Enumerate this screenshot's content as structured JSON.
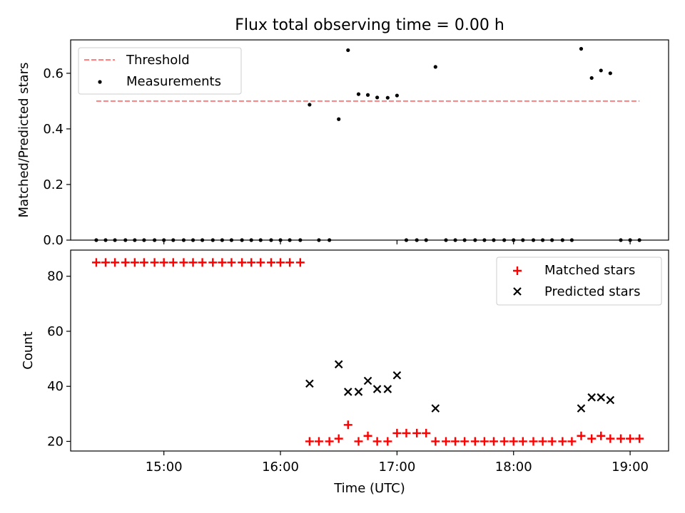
{
  "chart_data": {
    "title": "Flux total observing time = 0.00 h",
    "xlabel": "Time (UTC)",
    "x_unit": "hours (UTC)",
    "xlim": [
      14.2,
      19.33
    ],
    "x_ticks": [
      {
        "value": 15,
        "label": "15:00"
      },
      {
        "value": 16,
        "label": "16:00"
      },
      {
        "value": 17,
        "label": "17:00"
      },
      {
        "value": 18,
        "label": "18:00"
      },
      {
        "value": 19,
        "label": "19:00"
      }
    ],
    "top": {
      "type": "scatter",
      "ylabel": "Matched/Predicted stars",
      "ylim": [
        0,
        0.72
      ],
      "y_ticks": [
        "0.0",
        "0.2",
        "0.4",
        "0.6"
      ],
      "y_tick_values": [
        0,
        0.2,
        0.4,
        0.6
      ],
      "legend": [
        "Threshold",
        "Measurements"
      ],
      "legend_position": "upper-left",
      "threshold": {
        "name": "Threshold",
        "y": 0.5,
        "x": [
          14.42,
          19.08
        ],
        "color": "#ff7f7f"
      },
      "measurements": {
        "name": "Measurements",
        "color": "#000000",
        "points": [
          [
            14.42,
            0
          ],
          [
            14.5,
            0
          ],
          [
            14.58,
            0
          ],
          [
            14.67,
            0
          ],
          [
            14.75,
            0
          ],
          [
            14.83,
            0
          ],
          [
            14.92,
            0
          ],
          [
            15.0,
            0
          ],
          [
            15.08,
            0
          ],
          [
            15.17,
            0
          ],
          [
            15.25,
            0
          ],
          [
            15.33,
            0
          ],
          [
            15.42,
            0
          ],
          [
            15.5,
            0
          ],
          [
            15.58,
            0
          ],
          [
            15.67,
            0
          ],
          [
            15.75,
            0
          ],
          [
            15.83,
            0
          ],
          [
            15.92,
            0
          ],
          [
            16.0,
            0
          ],
          [
            16.08,
            0
          ],
          [
            16.17,
            0
          ],
          [
            16.25,
            0.487
          ],
          [
            16.33,
            0
          ],
          [
            16.42,
            0
          ],
          [
            16.5,
            0.435
          ],
          [
            16.58,
            0.683
          ],
          [
            16.67,
            0.525
          ],
          [
            16.75,
            0.522
          ],
          [
            16.83,
            0.513
          ],
          [
            16.92,
            0.512
          ],
          [
            17.0,
            0.52
          ],
          [
            17.08,
            0
          ],
          [
            17.17,
            0
          ],
          [
            17.25,
            0
          ],
          [
            17.33,
            0.623
          ],
          [
            17.42,
            0
          ],
          [
            17.5,
            0
          ],
          [
            17.58,
            0
          ],
          [
            17.67,
            0
          ],
          [
            17.75,
            0
          ],
          [
            17.83,
            0
          ],
          [
            17.92,
            0
          ],
          [
            18.0,
            0
          ],
          [
            18.08,
            0
          ],
          [
            18.17,
            0
          ],
          [
            18.25,
            0
          ],
          [
            18.33,
            0
          ],
          [
            18.42,
            0
          ],
          [
            18.5,
            0
          ],
          [
            18.58,
            0.688
          ],
          [
            18.67,
            0.583
          ],
          [
            18.75,
            0.61
          ],
          [
            18.83,
            0.6
          ],
          [
            18.92,
            0
          ],
          [
            19.0,
            0
          ],
          [
            19.08,
            0
          ]
        ]
      }
    },
    "bottom": {
      "type": "scatter",
      "ylabel": "Count",
      "ylim": [
        16.5,
        89.5
      ],
      "y_ticks": [
        "20",
        "40",
        "60",
        "80"
      ],
      "y_tick_values": [
        20,
        40,
        60,
        80
      ],
      "legend": [
        "Matched stars",
        "Predicted stars"
      ],
      "legend_position": "upper-right",
      "series": [
        {
          "name": "Matched stars",
          "marker": "plus",
          "color": "#ff0000",
          "points": [
            [
              14.42,
              85
            ],
            [
              14.5,
              85
            ],
            [
              14.58,
              85
            ],
            [
              14.67,
              85
            ],
            [
              14.75,
              85
            ],
            [
              14.83,
              85
            ],
            [
              14.92,
              85
            ],
            [
              15.0,
              85
            ],
            [
              15.08,
              85
            ],
            [
              15.17,
              85
            ],
            [
              15.25,
              85
            ],
            [
              15.33,
              85
            ],
            [
              15.42,
              85
            ],
            [
              15.5,
              85
            ],
            [
              15.58,
              85
            ],
            [
              15.67,
              85
            ],
            [
              15.75,
              85
            ],
            [
              15.83,
              85
            ],
            [
              15.92,
              85
            ],
            [
              16.0,
              85
            ],
            [
              16.08,
              85
            ],
            [
              16.17,
              85
            ],
            [
              16.25,
              20
            ],
            [
              16.33,
              20
            ],
            [
              16.42,
              20
            ],
            [
              16.5,
              21
            ],
            [
              16.58,
              26
            ],
            [
              16.67,
              20
            ],
            [
              16.75,
              22
            ],
            [
              16.83,
              20
            ],
            [
              16.92,
              20
            ],
            [
              17.0,
              23
            ],
            [
              17.08,
              23
            ],
            [
              17.17,
              23
            ],
            [
              17.25,
              23
            ],
            [
              17.33,
              20
            ],
            [
              17.42,
              20
            ],
            [
              17.5,
              20
            ],
            [
              17.58,
              20
            ],
            [
              17.67,
              20
            ],
            [
              17.75,
              20
            ],
            [
              17.83,
              20
            ],
            [
              17.92,
              20
            ],
            [
              18.0,
              20
            ],
            [
              18.08,
              20
            ],
            [
              18.17,
              20
            ],
            [
              18.25,
              20
            ],
            [
              18.33,
              20
            ],
            [
              18.42,
              20
            ],
            [
              18.5,
              20
            ],
            [
              18.58,
              22
            ],
            [
              18.67,
              21
            ],
            [
              18.75,
              22
            ],
            [
              18.83,
              21
            ],
            [
              18.92,
              21
            ],
            [
              19.0,
              21
            ],
            [
              19.08,
              21
            ]
          ]
        },
        {
          "name": "Predicted stars",
          "marker": "x",
          "color": "#000000",
          "points": [
            [
              16.25,
              41
            ],
            [
              16.5,
              48
            ],
            [
              16.58,
              38
            ],
            [
              16.67,
              38
            ],
            [
              16.75,
              42
            ],
            [
              16.83,
              39
            ],
            [
              16.92,
              39
            ],
            [
              17.0,
              44
            ],
            [
              17.33,
              32
            ],
            [
              18.58,
              32
            ],
            [
              18.67,
              36
            ],
            [
              18.75,
              36
            ],
            [
              18.83,
              35
            ]
          ]
        }
      ]
    }
  }
}
